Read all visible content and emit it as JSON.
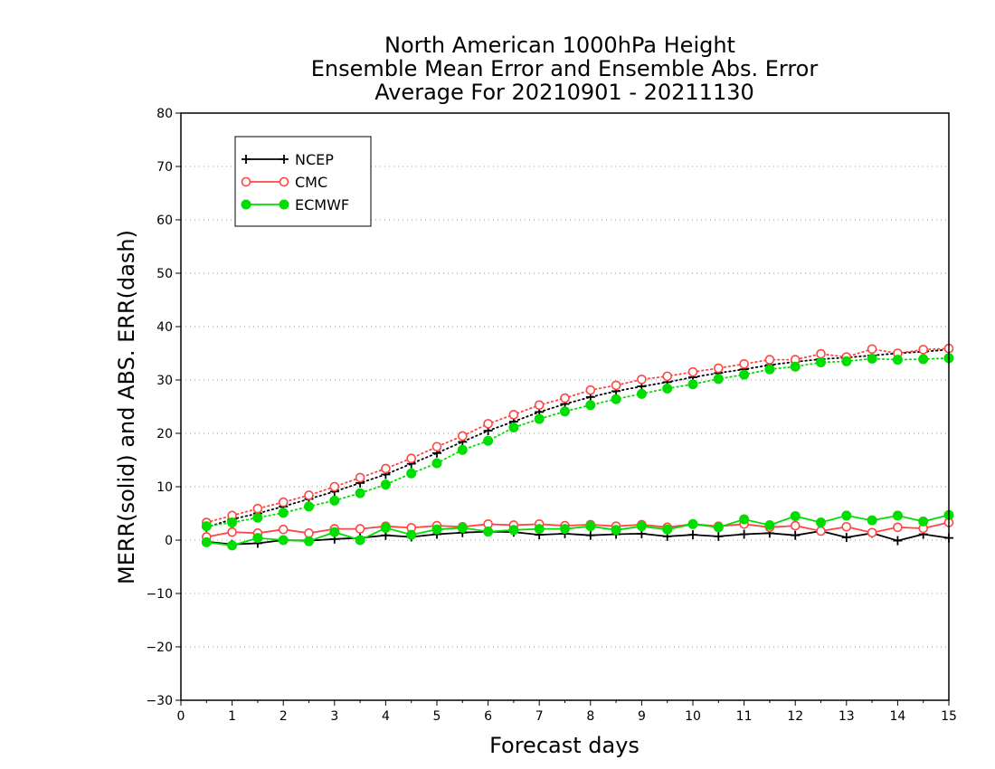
{
  "chart_data": {
    "type": "line",
    "title_lines": [
      "North American 1000hPa Height",
      "Ensemble Mean Error and Ensemble Abs. Error",
      "Average For 20210901 - 20211130"
    ],
    "xlabel": "Forecast days",
    "ylabel": "MERR(solid) and ABS. ERR(dash)",
    "xlim": [
      0,
      15
    ],
    "ylim": [
      -30,
      80
    ],
    "xticks": [
      0,
      1,
      2,
      3,
      4,
      5,
      6,
      7,
      8,
      9,
      10,
      11,
      12,
      13,
      14,
      15
    ],
    "yticks": [
      -30,
      -20,
      -10,
      0,
      10,
      20,
      30,
      40,
      50,
      60,
      70,
      80
    ],
    "grid": "horizontal dotted",
    "legend_position": "top-left",
    "x": [
      0.5,
      1,
      1.5,
      2,
      2.5,
      3,
      3.5,
      4,
      4.5,
      5,
      5.5,
      6,
      6.5,
      7,
      7.5,
      8,
      8.5,
      9,
      9.5,
      10,
      10.5,
      11,
      11.5,
      12,
      12.5,
      13,
      13.5,
      14,
      14.5,
      15
    ],
    "series": [
      {
        "name": "NCEP",
        "color": "#000000",
        "marker": "plus",
        "merr": [
          -0.3,
          -0.8,
          -0.6,
          0.0,
          -0.1,
          0.2,
          0.4,
          0.9,
          0.6,
          1.1,
          1.4,
          1.6,
          1.5,
          1.0,
          1.2,
          0.9,
          1.1,
          1.2,
          0.7,
          1.0,
          0.7,
          1.1,
          1.3,
          0.9,
          1.7,
          0.5,
          1.3,
          -0.1,
          1.1,
          0.4
        ],
        "abs_err": [
          2.4,
          3.9,
          5.0,
          6.3,
          7.7,
          9.1,
          10.7,
          12.3,
          14.3,
          16.3,
          18.4,
          20.5,
          22.2,
          24.0,
          25.5,
          26.8,
          27.9,
          28.8,
          29.6,
          30.5,
          31.3,
          32.0,
          32.8,
          33.4,
          33.9,
          34.2,
          34.6,
          35.0,
          35.3,
          35.7
        ]
      },
      {
        "name": "CMC",
        "color": "#ff4444",
        "marker": "open-circle",
        "merr": [
          0.6,
          1.5,
          1.3,
          2.0,
          1.3,
          2.1,
          2.1,
          2.6,
          2.3,
          2.7,
          2.5,
          3.0,
          2.8,
          3.0,
          2.7,
          2.9,
          2.6,
          2.9,
          2.4,
          3.0,
          2.6,
          3.0,
          2.4,
          2.7,
          1.7,
          2.5,
          1.4,
          2.4,
          2.2,
          3.3
        ],
        "abs_err": [
          3.3,
          4.6,
          5.9,
          7.1,
          8.4,
          10.0,
          11.7,
          13.4,
          15.3,
          17.5,
          19.5,
          21.8,
          23.5,
          25.3,
          26.6,
          28.1,
          29.0,
          30.1,
          30.7,
          31.5,
          32.2,
          33.0,
          33.8,
          33.8,
          34.9,
          34.3,
          35.8,
          35.0,
          35.7,
          35.9
        ]
      },
      {
        "name": "ECMWF",
        "color": "#00dd00",
        "marker": "filled-circle",
        "merr": [
          -0.4,
          -1.0,
          0.4,
          0.0,
          -0.2,
          1.5,
          0.0,
          2.3,
          1.0,
          2.0,
          2.3,
          1.6,
          1.9,
          2.1,
          2.1,
          2.6,
          1.9,
          2.6,
          2.0,
          3.0,
          2.4,
          3.9,
          2.8,
          4.5,
          3.3,
          4.6,
          3.7,
          4.6,
          3.5,
          4.7
        ],
        "abs_err": [
          2.6,
          3.3,
          4.2,
          5.1,
          6.3,
          7.4,
          8.8,
          10.4,
          12.5,
          14.4,
          16.9,
          18.6,
          21.1,
          22.7,
          24.1,
          25.3,
          26.4,
          27.4,
          28.4,
          29.2,
          30.2,
          31.0,
          32.0,
          32.5,
          33.3,
          33.5,
          34.0,
          33.8,
          33.9,
          34.1
        ]
      }
    ]
  }
}
